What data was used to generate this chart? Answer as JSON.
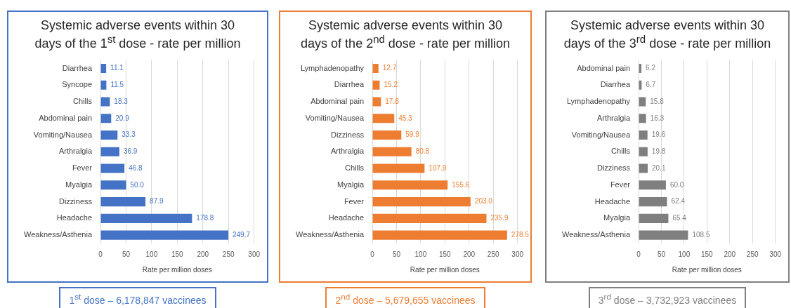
{
  "chart_data": [
    {
      "type": "bar",
      "orientation": "horizontal",
      "title": "Systemic adverse events within 30 days of the 1$^{st}$ dose - rate per million",
      "xlabel": "Rate per million doses",
      "categories": [
        "Diarrhea",
        "Syncope",
        "Chills",
        "Abdominal pain",
        "Vomiting/Nausea",
        "Arthralgia",
        "Fever",
        "Myalgia",
        "Dizziness",
        "Headache",
        "Weakness/Asthenia"
      ],
      "values": [
        11.1,
        11.5,
        18.3,
        20.9,
        33.3,
        36.9,
        46.8,
        50.0,
        87.9,
        178.8,
        249.7
      ],
      "value_labels": [
        "11.1",
        "11.5",
        "18.3",
        "20.9",
        "33.3",
        "36.9",
        "46.8",
        "50.0",
        "87.9",
        "178.8",
        "249.7"
      ],
      "color": "#4472c4",
      "xlim": [
        0,
        300
      ],
      "xticks": [
        0,
        50,
        100,
        150,
        200,
        250,
        300
      ],
      "grid": "x",
      "annotations": [
        "1$^{st}$ dose – 6,178,847 vaccinees"
      ]
    },
    {
      "type": "bar",
      "orientation": "horizontal",
      "title": "Systemic adverse events within 30 days of the 2$^{nd}$ dose - rate per million",
      "xlabel": "Rate per million doses",
      "categories": [
        "Lymphadenopathy",
        "Diarrhea",
        "Abdominal pain",
        "Vomiting/Nausea",
        "Dizziness",
        "Arthralgia",
        "Chills",
        "Myalgia",
        "Fever",
        "Headache",
        "Weakness/Asthenia"
      ],
      "values": [
        12.7,
        15.2,
        17.8,
        45.3,
        59.9,
        80.8,
        107.9,
        155.6,
        203.0,
        235.9,
        278.5
      ],
      "value_labels": [
        "12.7",
        "15.2",
        "17.8",
        "45.3",
        "59.9",
        "80.8",
        "107.9",
        "155.6",
        "203.0",
        "235.9",
        "278.5"
      ],
      "color": "#ed7d31",
      "xlim": [
        0,
        300
      ],
      "xticks": [
        0,
        50,
        100,
        150,
        200,
        250,
        300
      ],
      "grid": "x",
      "annotations": [
        "2$^{nd}$ dose – 5,679,655 vaccinees"
      ]
    },
    {
      "type": "bar",
      "orientation": "horizontal",
      "title": "Systemic adverse events within 30 days of the 3$^{rd}$ dose - rate per million",
      "xlabel": "Rate per million doses",
      "categories": [
        "Abdominal pain",
        "Diarrhea",
        "Lymphadenopathy",
        "Arthralgia",
        "Vomiting/Nausea",
        "Chills",
        "Dizziness",
        "Fever",
        "Headache",
        "Myalgia",
        "Weakness/Asthenia"
      ],
      "values": [
        6.2,
        6.7,
        15.8,
        16.3,
        19.6,
        19.8,
        20.1,
        60.0,
        62.4,
        65.4,
        108.5
      ],
      "value_labels": [
        "6.2",
        "6.7",
        "15.8",
        "16.3",
        "19.6",
        "19.8",
        "20.1",
        "60.0",
        "62.4",
        "65.4",
        "108.5"
      ],
      "color": "#7f7f7f",
      "xlim": [
        0,
        300
      ],
      "xticks": [
        0,
        50,
        100,
        150,
        200,
        250,
        300
      ],
      "grid": "x",
      "annotations": [
        "3$^{rd}$ dose – 3,732,923 vaccinees"
      ]
    }
  ]
}
